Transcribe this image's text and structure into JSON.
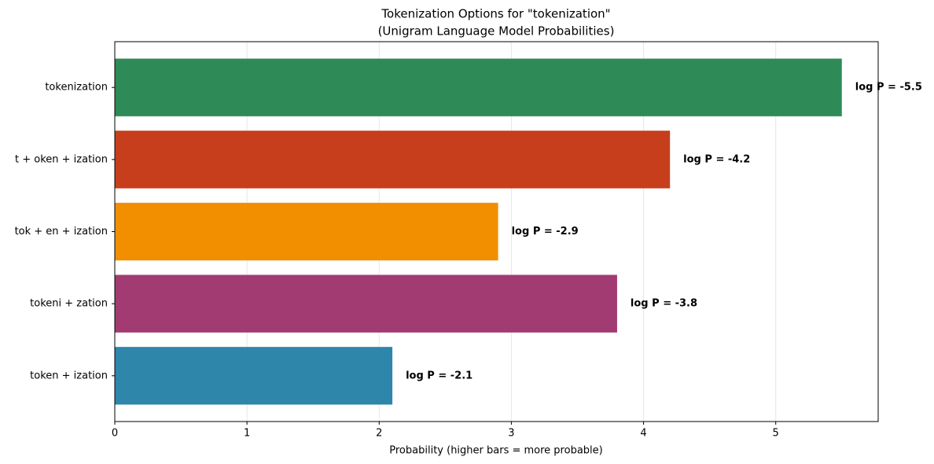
{
  "chart_data": {
    "type": "barh",
    "title": "Tokenization Options for \"tokenization\"",
    "subtitle": "(Unigram Language Model Probabilities)",
    "x_label": "Probability (higher bars = more probable)",
    "categories": [
      "token + ization",
      "tokeni + zation",
      "tok + en + ization",
      "t + oken + ization",
      "tokenization"
    ],
    "values": [
      2.1,
      3.8,
      2.9,
      4.2,
      5.5
    ],
    "value_labels": [
      "log P = -2.1",
      "log P = -3.8",
      "log P = -2.9",
      "log P = -4.2",
      "log P = -5.5"
    ],
    "colors": [
      "#2e86ab",
      "#a23b72",
      "#f18f01",
      "#c73e1d",
      "#2e8b57"
    ],
    "xlim": [
      0,
      5.775
    ],
    "xticks": [
      0,
      1,
      2,
      3,
      4,
      5
    ],
    "grid": true
  }
}
